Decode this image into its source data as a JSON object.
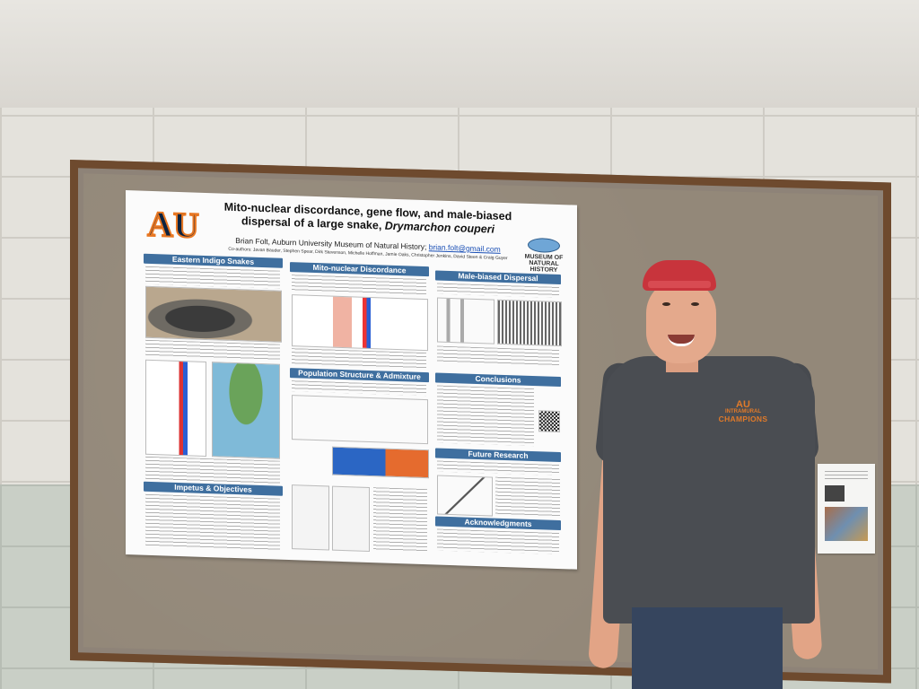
{
  "poster": {
    "title_line1": "Mito-nuclear discordance, gene flow, and male-biased",
    "title_line2_plain": "dispersal of a large snake, ",
    "title_line2_italic": "Drymarchon couperi",
    "author": "Brian Folt, Auburn University Museum of Natural History; ",
    "email": "brian.folt@gmail.com",
    "coauthors": "Co-authors: Javan Bauder, Stephen Spear, Dirk Stevenson, Michelle Hoffman, Jamie Oaks, Christopher Jenkins, David Steen & Craig Guyer",
    "logo_left": "AU",
    "logo_right": [
      "MUSEUM OF",
      "NATURAL",
      "HISTORY"
    ],
    "sections": {
      "eastern_indigo": "Eastern Indigo Snakes",
      "mito_nuclear": "Mito-nuclear Discordance",
      "male_biased": "Male-biased Dispersal",
      "population_structure": "Population Structure & Admixture",
      "conclusions": "Conclusions",
      "impetus": "Impetus & Objectives",
      "future_research": "Future Research",
      "acknowledgments": "Acknowledgments"
    }
  },
  "shirt": {
    "logo": "AU",
    "line1": "INTRAMURAL",
    "line2": "CHAMPIONS"
  },
  "colors": {
    "poster_header": "#3f6f9f",
    "board_frame": "#6e4a2e",
    "cap": "#c8343c",
    "shirt": "#4a4d52"
  }
}
